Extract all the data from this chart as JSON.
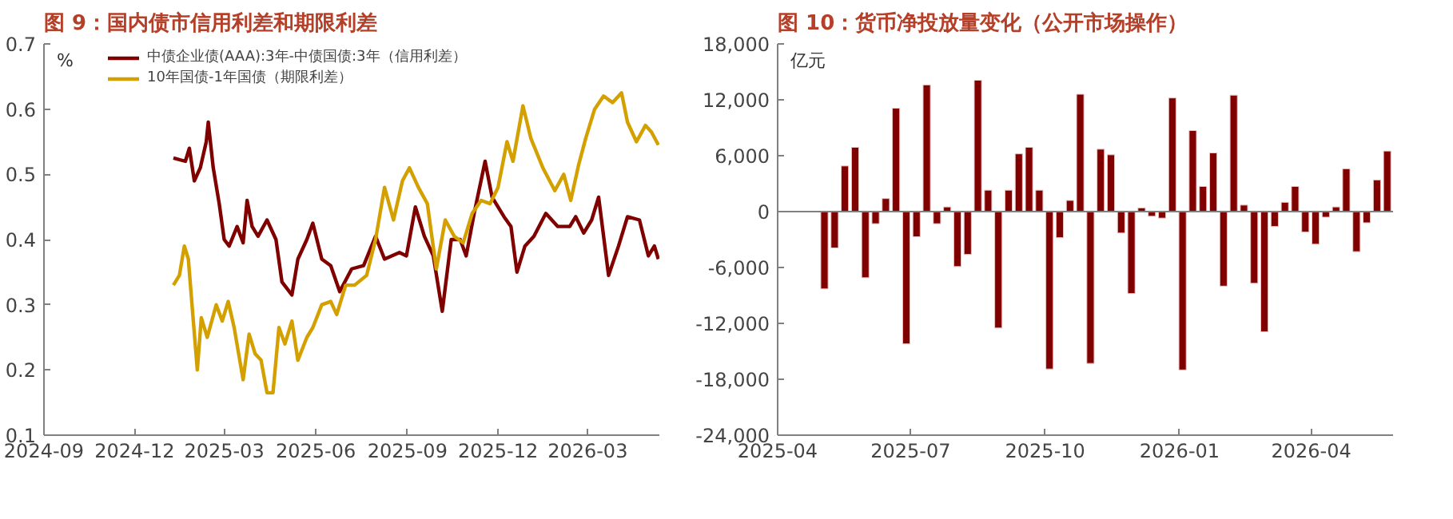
{
  "chart_data": [
    {
      "type": "line",
      "title": "图 9：国内债市信用利差和期限利差",
      "ylabel": "%",
      "legend": "top left",
      "grid": false,
      "xlim": [
        "2024-09-01",
        "2026-05-12"
      ],
      "xticks": [
        {
          "value": "2024-09-01",
          "label": "2024-09"
        },
        {
          "value": "2024-12-01",
          "label": "2024-12"
        },
        {
          "value": "2025-03-01",
          "label": "2025-03"
        },
        {
          "value": "2025-06-01",
          "label": "2025-06"
        },
        {
          "value": "2025-09-01",
          "label": "2025-09"
        },
        {
          "value": "2025-12-01",
          "label": "2025-12"
        },
        {
          "value": "2026-03-01",
          "label": "2026-03"
        }
      ],
      "ylim": [
        0.1,
        0.7
      ],
      "yticks": [
        0.1,
        0.2,
        0.3,
        0.4,
        0.5,
        0.6,
        0.7
      ],
      "series": [
        {
          "name": "中债企业债(AAA):3年-中债国债:3年（信用利差）",
          "color": "#800000",
          "x": [
            "2025-01-09",
            "2025-01-21",
            "2025-01-25",
            "2025-01-30",
            "2025-02-05",
            "2025-02-11",
            "2025-02-13",
            "2025-02-18",
            "2025-02-24",
            "2025-03-01",
            "2025-03-06",
            "2025-03-14",
            "2025-03-20",
            "2025-03-24",
            "2025-03-29",
            "2025-04-04",
            "2025-04-13",
            "2025-04-22",
            "2025-04-28",
            "2025-05-08",
            "2025-05-14",
            "2025-05-23",
            "2025-05-29",
            "2025-06-07",
            "2025-06-16",
            "2025-06-25",
            "2025-07-07",
            "2025-07-19",
            "2025-07-31",
            "2025-08-09",
            "2025-08-24",
            "2025-08-31",
            "2025-09-09",
            "2025-09-18",
            "2025-09-27",
            "2025-10-06",
            "2025-10-15",
            "2025-10-24",
            "2025-10-30",
            "2025-11-07",
            "2025-11-18",
            "2025-11-25",
            "2025-12-07",
            "2025-12-14",
            "2025-12-20",
            "2025-12-28",
            "2026-01-06",
            "2026-01-18",
            "2026-01-30",
            "2026-02-11",
            "2026-02-17",
            "2026-02-25",
            "2026-03-05",
            "2026-03-12",
            "2026-03-22",
            "2026-04-01",
            "2026-04-10",
            "2026-04-22",
            "2026-05-01",
            "2026-05-07",
            "2026-05-11"
          ],
          "values": [
            0.525,
            0.52,
            0.54,
            0.49,
            0.51,
            0.55,
            0.58,
            0.51,
            0.455,
            0.4,
            0.39,
            0.42,
            0.395,
            0.46,
            0.42,
            0.405,
            0.43,
            0.4,
            0.335,
            0.315,
            0.37,
            0.4,
            0.425,
            0.37,
            0.36,
            0.32,
            0.355,
            0.36,
            0.405,
            0.37,
            0.38,
            0.375,
            0.45,
            0.405,
            0.375,
            0.29,
            0.4,
            0.4,
            0.375,
            0.44,
            0.52,
            0.465,
            0.435,
            0.42,
            0.35,
            0.39,
            0.405,
            0.44,
            0.42,
            0.42,
            0.435,
            0.41,
            0.43,
            0.465,
            0.345,
            0.39,
            0.435,
            0.43,
            0.375,
            0.39,
            0.37
          ]
        },
        {
          "name": "10年国债-1年国债（期限利差）",
          "color": "#d4a000",
          "x": [
            "2025-01-09",
            "2025-01-15",
            "2025-01-20",
            "2025-01-24",
            "2025-01-29",
            "2025-02-02",
            "2025-02-06",
            "2025-02-12",
            "2025-02-21",
            "2025-02-27",
            "2025-03-05",
            "2025-03-11",
            "2025-03-20",
            "2025-03-26",
            "2025-04-01",
            "2025-04-07",
            "2025-04-13",
            "2025-04-19",
            "2025-04-25",
            "2025-05-01",
            "2025-05-08",
            "2025-05-14",
            "2025-05-23",
            "2025-05-29",
            "2025-06-07",
            "2025-06-16",
            "2025-06-22",
            "2025-07-01",
            "2025-07-10",
            "2025-07-22",
            "2025-07-31",
            "2025-08-09",
            "2025-08-18",
            "2025-08-27",
            "2025-09-03",
            "2025-09-12",
            "2025-09-21",
            "2025-09-30",
            "2025-10-09",
            "2025-10-18",
            "2025-10-27",
            "2025-11-05",
            "2025-11-14",
            "2025-11-23",
            "2025-12-01",
            "2025-12-10",
            "2025-12-16",
            "2025-12-26",
            "2026-01-03",
            "2026-01-15",
            "2026-01-27",
            "2026-02-05",
            "2026-02-12",
            "2026-02-20",
            "2026-02-27",
            "2026-03-08",
            "2026-03-17",
            "2026-03-26",
            "2026-04-04",
            "2026-04-10",
            "2026-04-19",
            "2026-04-28",
            "2026-05-04",
            "2026-05-11"
          ],
          "values": [
            0.33,
            0.345,
            0.39,
            0.37,
            0.275,
            0.2,
            0.28,
            0.25,
            0.3,
            0.275,
            0.305,
            0.265,
            0.185,
            0.255,
            0.225,
            0.215,
            0.165,
            0.165,
            0.265,
            0.24,
            0.275,
            0.215,
            0.25,
            0.265,
            0.3,
            0.305,
            0.285,
            0.33,
            0.33,
            0.345,
            0.4,
            0.48,
            0.43,
            0.49,
            0.51,
            0.48,
            0.455,
            0.355,
            0.43,
            0.405,
            0.395,
            0.44,
            0.46,
            0.455,
            0.48,
            0.55,
            0.52,
            0.605,
            0.555,
            0.51,
            0.475,
            0.5,
            0.46,
            0.515,
            0.555,
            0.6,
            0.62,
            0.61,
            0.625,
            0.58,
            0.55,
            0.575,
            0.565,
            0.545
          ]
        }
      ]
    },
    {
      "type": "bar",
      "title": "图 10：货币净投放量变化（公开市场操作）",
      "ylabel": "亿元",
      "grid": false,
      "legend": false,
      "xlim": [
        "2025-04-01",
        "2026-05-27"
      ],
      "xticks": [
        {
          "value": "2025-04-01",
          "label": "2025-04"
        },
        {
          "value": "2025-07-01",
          "label": "2025-07"
        },
        {
          "value": "2025-10-01",
          "label": "2025-10"
        },
        {
          "value": "2026-01-01",
          "label": "2026-01"
        },
        {
          "value": "2026-04-01",
          "label": "2026-04"
        }
      ],
      "ylim": [
        -24000,
        18000
      ],
      "yticks": [
        {
          "value": -24000,
          "label": "-24,000"
        },
        {
          "value": -18000,
          "label": "-18,000"
        },
        {
          "value": -12000,
          "label": "-12,000"
        },
        {
          "value": -6000,
          "label": "-6,000"
        },
        {
          "value": 0,
          "label": "0"
        },
        {
          "value": 6000,
          "label": "6,000"
        },
        {
          "value": 12000,
          "label": "12,000"
        },
        {
          "value": 18000,
          "label": "18,000"
        }
      ],
      "ref_lines": [
        {
          "axis": "y",
          "value": 0,
          "color": "#808080"
        }
      ],
      "x": [
        "2025-05-03",
        "2025-05-10",
        "2025-05-17",
        "2025-05-24",
        "2025-05-31",
        "2025-06-07",
        "2025-06-14",
        "2025-06-21",
        "2025-06-28",
        "2025-07-05",
        "2025-07-12",
        "2025-07-19",
        "2025-07-26",
        "2025-08-02",
        "2025-08-09",
        "2025-08-16",
        "2025-08-23",
        "2025-08-30",
        "2025-09-06",
        "2025-09-13",
        "2025-09-20",
        "2025-09-27",
        "2025-10-04",
        "2025-10-11",
        "2025-10-18",
        "2025-10-25",
        "2025-11-01",
        "2025-11-08",
        "2025-11-15",
        "2025-11-22",
        "2025-11-29",
        "2025-12-06",
        "2025-12-13",
        "2025-12-20",
        "2025-12-27",
        "2026-01-03",
        "2026-01-10",
        "2026-01-17",
        "2026-01-24",
        "2026-01-31",
        "2026-02-07",
        "2026-02-14",
        "2026-02-21",
        "2026-02-28",
        "2026-03-07",
        "2026-03-14",
        "2026-03-21",
        "2026-03-28",
        "2026-04-04",
        "2026-04-11",
        "2026-04-18",
        "2026-04-25",
        "2026-05-02",
        "2026-05-09",
        "2026-05-16",
        "2026-05-23"
      ],
      "series": [
        {
          "color": "#800000",
          "values": [
            -8300,
            -3900,
            4900,
            6900,
            -7100,
            -1300,
            1400,
            11100,
            -14200,
            -2700,
            13600,
            -1300,
            500,
            -5900,
            -4600,
            14100,
            2300,
            -12500,
            2300,
            6200,
            6900,
            2300,
            -16900,
            -2800,
            1200,
            12600,
            -16300,
            6700,
            6100,
            -2300,
            -8800,
            400,
            -500,
            -700,
            12200,
            -17000,
            8700,
            2700,
            6300,
            -8000,
            12500,
            700,
            -7700,
            -12900,
            -1600,
            1000,
            2700,
            -2200,
            -3500,
            -600,
            500,
            4600,
            -4300,
            -1200,
            3400,
            6500
          ]
        }
      ]
    }
  ]
}
